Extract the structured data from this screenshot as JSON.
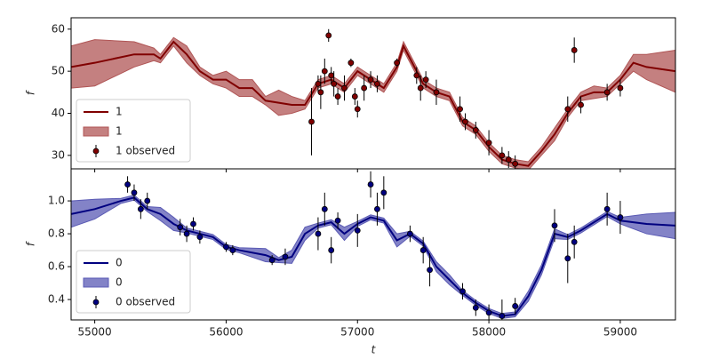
{
  "chart_data": [
    {
      "type": "line",
      "ylabel": "f",
      "xlim": [
        54820,
        59420
      ],
      "ylim": [
        26.8,
        62.7
      ],
      "yticks": [
        30,
        40,
        50,
        60
      ],
      "xticks": [
        55000,
        56000,
        57000,
        58000,
        59000
      ],
      "x": [
        54820,
        55000,
        55300,
        55450,
        55500,
        55600,
        55700,
        55800,
        55900,
        56000,
        56100,
        56200,
        56300,
        56400,
        56500,
        56600,
        56700,
        56800,
        56900,
        57000,
        57100,
        57200,
        57300,
        57350,
        57450,
        57500,
        57600,
        57700,
        57800,
        57900,
        58000,
        58100,
        58200,
        58300,
        58400,
        58500,
        58600,
        58700,
        58800,
        58900,
        59000,
        59100,
        59200,
        59420
      ],
      "series": [
        {
          "name": "1",
          "style": "line",
          "color": "#800000",
          "values": [
            51,
            52,
            54,
            54,
            53,
            57,
            54,
            50,
            48,
            48,
            46,
            46,
            43,
            42.5,
            42,
            42,
            47,
            48,
            46,
            50,
            48,
            46,
            51,
            56,
            50,
            47,
            45,
            44,
            38,
            36,
            32,
            29,
            28,
            27.5,
            31,
            35,
            40,
            44,
            45,
            45,
            48,
            52,
            51,
            50
          ]
        },
        {
          "name": "1",
          "style": "band",
          "color": "#b05555",
          "lower": [
            46,
            46.5,
            51,
            52.5,
            52,
            56,
            52,
            49,
            47,
            46,
            44,
            44,
            42,
            39.5,
            40,
            41,
            46,
            47,
            45,
            49,
            47,
            45,
            50,
            55,
            49,
            46,
            44,
            43,
            37,
            35,
            31,
            28,
            27,
            26.5,
            30,
            33.5,
            39,
            43,
            43.5,
            44,
            47,
            50,
            48,
            45
          ],
          "upper": [
            56,
            57.5,
            57,
            55.5,
            54,
            58,
            56,
            51,
            49,
            50,
            48,
            48,
            44,
            45.5,
            44,
            43,
            48,
            49,
            47,
            51,
            49,
            47,
            52,
            57,
            51,
            48,
            46,
            45,
            39,
            37,
            33,
            30,
            29,
            28.5,
            32,
            36.5,
            41,
            45,
            46.5,
            46,
            49,
            54,
            54,
            55
          ]
        },
        {
          "name": "1 observed",
          "style": "errorbar",
          "color": "#800000",
          "x": [
            56650,
            56700,
            56720,
            56750,
            56780,
            56800,
            56820,
            56850,
            56900,
            56950,
            56980,
            57000,
            57050,
            57100,
            57150,
            57300,
            57450,
            57480,
            57520,
            57600,
            57780,
            57820,
            57900,
            58000,
            58100,
            58150,
            58200,
            58600,
            58650,
            58700,
            58900,
            59000
          ],
          "values": [
            38,
            47,
            45,
            50,
            58.5,
            49,
            47,
            44,
            46,
            52,
            44,
            41,
            46,
            48,
            47,
            52,
            49,
            46,
            48,
            45,
            41,
            38,
            36,
            33,
            30,
            29,
            28,
            41,
            55,
            42,
            45,
            46
          ],
          "errors": [
            8,
            2,
            4,
            3,
            1.5,
            2,
            3,
            2,
            3,
            1,
            2,
            2,
            3,
            2,
            2,
            1,
            2,
            3,
            2,
            3,
            3,
            2,
            2,
            3,
            2,
            2,
            2,
            3,
            3,
            2,
            2,
            2
          ]
        }
      ]
    },
    {
      "type": "line",
      "ylabel": "f",
      "xlabel": "t",
      "xlim": [
        54820,
        59420
      ],
      "ylim": [
        0.276,
        1.195
      ],
      "yticks": [
        0.4,
        0.6,
        0.8,
        {
          "value": 1,
          "label": "1.0"
        }
      ],
      "xticks": [
        55000,
        56000,
        57000,
        58000,
        59000
      ],
      "x": [
        54820,
        55000,
        55200,
        55300,
        55400,
        55500,
        55600,
        55700,
        55800,
        55900,
        56000,
        56100,
        56300,
        56400,
        56500,
        56600,
        56700,
        56800,
        56900,
        57000,
        57100,
        57200,
        57300,
        57400,
        57500,
        57600,
        57700,
        57800,
        57900,
        58000,
        58100,
        58200,
        58300,
        58400,
        58500,
        58600,
        58700,
        58800,
        58900,
        59000,
        59200,
        59420
      ],
      "series": [
        {
          "name": "0",
          "style": "line",
          "color": "#000080",
          "values": [
            0.92,
            0.95,
            1.0,
            1.02,
            0.95,
            0.92,
            0.86,
            0.82,
            0.8,
            0.78,
            0.72,
            0.7,
            0.67,
            0.64,
            0.66,
            0.8,
            0.85,
            0.87,
            0.8,
            0.86,
            0.9,
            0.88,
            0.76,
            0.8,
            0.74,
            0.6,
            0.52,
            0.44,
            0.38,
            0.33,
            0.3,
            0.31,
            0.42,
            0.58,
            0.8,
            0.78,
            0.82,
            0.87,
            0.92,
            0.88,
            0.86,
            0.85
          ]
        },
        {
          "name": "0",
          "style": "band",
          "color": "#5a5ab4",
          "lower": [
            0.84,
            0.89,
            0.985,
            1.005,
            0.935,
            0.88,
            0.82,
            0.805,
            0.785,
            0.765,
            0.705,
            0.685,
            0.63,
            0.625,
            0.62,
            0.76,
            0.835,
            0.855,
            0.76,
            0.845,
            0.885,
            0.865,
            0.72,
            0.785,
            0.725,
            0.57,
            0.49,
            0.425,
            0.365,
            0.315,
            0.285,
            0.295,
            0.39,
            0.55,
            0.77,
            0.765,
            0.805,
            0.855,
            0.905,
            0.86,
            0.8,
            0.77
          ],
          "upper": [
            1.0,
            1.01,
            1.015,
            1.035,
            0.965,
            0.96,
            0.9,
            0.835,
            0.815,
            0.795,
            0.735,
            0.715,
            0.71,
            0.655,
            0.7,
            0.84,
            0.865,
            0.885,
            0.84,
            0.875,
            0.915,
            0.895,
            0.8,
            0.815,
            0.755,
            0.63,
            0.55,
            0.455,
            0.395,
            0.345,
            0.315,
            0.325,
            0.45,
            0.61,
            0.83,
            0.795,
            0.835,
            0.885,
            0.935,
            0.9,
            0.92,
            0.93
          ]
        },
        {
          "name": "0 observed",
          "style": "errorbar",
          "color": "#000080",
          "x": [
            55250,
            55300,
            55350,
            55400,
            55650,
            55700,
            55750,
            55800,
            56000,
            56050,
            56350,
            56450,
            56700,
            56750,
            56800,
            56850,
            57000,
            57100,
            57150,
            57200,
            57400,
            57500,
            57550,
            57800,
            57900,
            58000,
            58100,
            58200,
            58500,
            58600,
            58650,
            58900,
            59000
          ],
          "values": [
            1.1,
            1.05,
            0.95,
            1.0,
            0.84,
            0.8,
            0.86,
            0.78,
            0.72,
            0.7,
            0.64,
            0.66,
            0.8,
            0.95,
            0.7,
            0.88,
            0.82,
            1.1,
            0.95,
            1.05,
            0.8,
            0.7,
            0.58,
            0.45,
            0.35,
            0.32,
            0.3,
            0.36,
            0.85,
            0.65,
            0.75,
            0.95,
            0.9
          ],
          "errors": [
            0.05,
            0.05,
            0.06,
            0.05,
            0.05,
            0.05,
            0.04,
            0.04,
            0.03,
            0.03,
            0.03,
            0.05,
            0.1,
            0.1,
            0.08,
            0.05,
            0.1,
            0.08,
            0.1,
            0.1,
            0.05,
            0.08,
            0.1,
            0.05,
            0.05,
            0.05,
            0.1,
            0.05,
            0.1,
            0.15,
            0.1,
            0.1,
            0.1
          ]
        }
      ]
    }
  ]
}
